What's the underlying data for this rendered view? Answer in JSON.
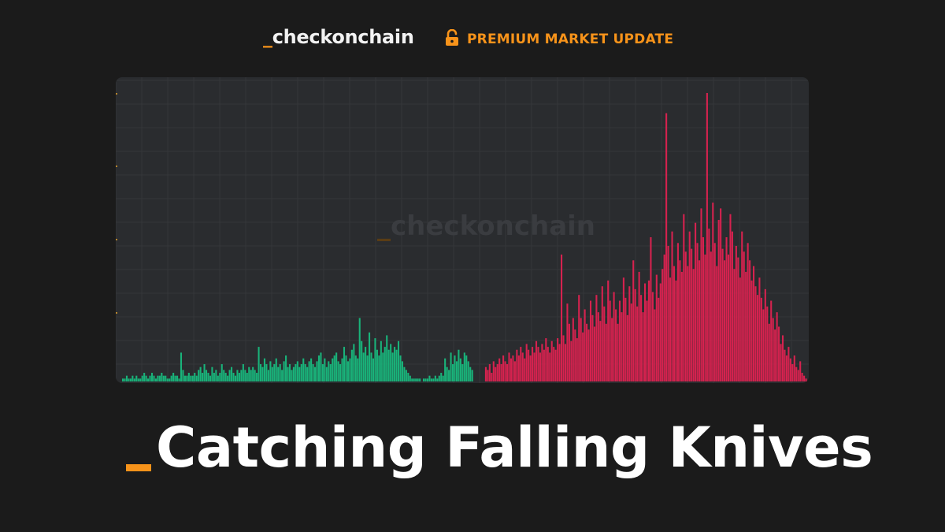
{
  "header": {
    "brand_prefix": "_",
    "brand_name": "checkonchain",
    "badge_icon": "lock-open-icon",
    "badge_label": "PREMIUM MARKET UPDATE"
  },
  "title": {
    "underscore_icon": "orange-underscore-mark",
    "text": "Catching Falling Knives"
  },
  "watermark": {
    "prefix": "_",
    "text": "checkonchain"
  },
  "colors": {
    "background": "#1b1b1b",
    "panel": "#2a2c2f",
    "accent": "#f7931a",
    "gain": "#19b37a",
    "loss": "#d6224f"
  },
  "chart_data": {
    "type": "bar",
    "title": "",
    "xlabel": "",
    "ylabel": "",
    "ylim": [
      0,
      100
    ],
    "grid": true,
    "legend": "none",
    "series": [
      {
        "name": "",
        "color": "#19b37a",
        "values": [
          1,
          1,
          2,
          1,
          1,
          2,
          1,
          2,
          1,
          1,
          2,
          3,
          2,
          1,
          2,
          3,
          2,
          1,
          2,
          2,
          3,
          2,
          2,
          1,
          1,
          2,
          3,
          2,
          2,
          1,
          10,
          4,
          2,
          2,
          3,
          2,
          2,
          3,
          2,
          4,
          5,
          3,
          6,
          4,
          3,
          2,
          5,
          3,
          4,
          2,
          3,
          6,
          4,
          3,
          2,
          4,
          5,
          3,
          2,
          4,
          3,
          4,
          6,
          4,
          3,
          5,
          4,
          5,
          4,
          3,
          12,
          6,
          5,
          8,
          6,
          4,
          7,
          5,
          6,
          8,
          5,
          6,
          4,
          7,
          9,
          5,
          6,
          4,
          5,
          6,
          7,
          5,
          6,
          8,
          6,
          5,
          7,
          8,
          6,
          5,
          7,
          9,
          10,
          6,
          8,
          5,
          7,
          6,
          8,
          9,
          10,
          7,
          6,
          8,
          12,
          9,
          7,
          8,
          11,
          13,
          9,
          8,
          22,
          14,
          10,
          12,
          9,
          17,
          10,
          8,
          15,
          11,
          9,
          14,
          10,
          12,
          16,
          11,
          13,
          10,
          12,
          11,
          14,
          9,
          7,
          5,
          4,
          3,
          2,
          1,
          1,
          1,
          1,
          1,
          0,
          1,
          1,
          1,
          2,
          1,
          1,
          2,
          1,
          2,
          3,
          2,
          8,
          5,
          4,
          10,
          6,
          9,
          7,
          11,
          8,
          6,
          10,
          9,
          7,
          5,
          4
        ],
        "start": 0
      },
      {
        "name": "",
        "color": "#d6224f",
        "values": [
          5,
          4,
          6,
          3,
          7,
          5,
          6,
          8,
          6,
          9,
          7,
          6,
          10,
          8,
          9,
          7,
          11,
          9,
          12,
          10,
          8,
          13,
          11,
          9,
          12,
          10,
          14,
          12,
          10,
          13,
          11,
          15,
          12,
          10,
          14,
          12,
          11,
          15,
          13,
          44,
          16,
          13,
          27,
          20,
          14,
          22,
          18,
          15,
          30,
          22,
          17,
          25,
          20,
          18,
          28,
          23,
          19,
          30,
          24,
          21,
          33,
          26,
          20,
          35,
          28,
          22,
          31,
          25,
          20,
          28,
          24,
          36,
          29,
          23,
          33,
          27,
          42,
          32,
          26,
          38,
          30,
          24,
          34,
          28,
          35,
          50,
          31,
          25,
          37,
          29,
          34,
          39,
          44,
          93,
          47,
          36,
          52,
          40,
          35,
          48,
          42,
          38,
          58,
          45,
          40,
          52,
          46,
          39,
          55,
          48,
          42,
          60,
          50,
          44,
          100,
          53,
          45,
          62,
          48,
          40,
          56,
          60,
          46,
          42,
          50,
          44,
          58,
          52,
          39,
          47,
          43,
          36,
          52,
          45,
          38,
          48,
          42,
          35,
          40,
          33,
          30,
          36,
          29,
          25,
          32,
          26,
          20,
          28,
          22,
          18,
          24,
          19,
          13,
          16,
          11,
          9,
          12,
          8,
          6,
          9,
          5,
          4,
          7,
          3,
          2,
          1
        ],
        "start": 187
      }
    ]
  }
}
